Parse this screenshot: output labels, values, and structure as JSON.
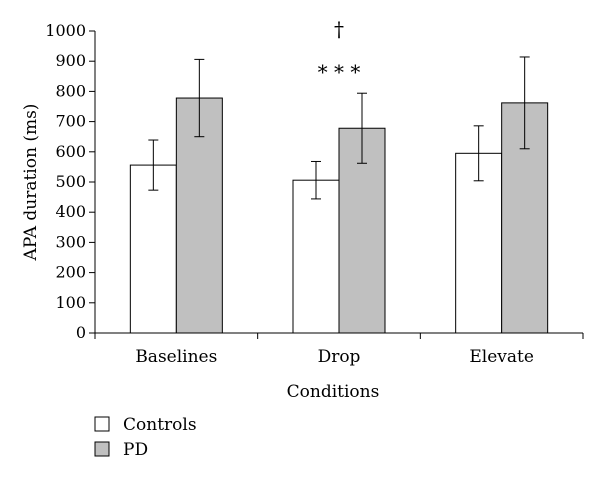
{
  "chart_data": {
    "type": "bar",
    "title": "",
    "xlabel": "Conditions",
    "ylabel": "APA duration (ms)",
    "ylim": [
      0,
      1000
    ],
    "yticks": [
      0,
      100,
      200,
      300,
      400,
      500,
      600,
      700,
      800,
      900,
      1000
    ],
    "grid": false,
    "categories": [
      "Baselines",
      "Drop",
      "Elevate"
    ],
    "series": [
      {
        "name": "Controls",
        "color": "#ffffff",
        "values": [
          556,
          506,
          595
        ],
        "error": [
          83,
          62,
          91
        ]
      },
      {
        "name": "PD",
        "color": "#c0c0c0",
        "values": [
          778,
          678,
          762
        ],
        "error": [
          128,
          116,
          152
        ]
      }
    ],
    "annotations": [
      {
        "category": "Drop",
        "text": "†"
      },
      {
        "category": "Drop",
        "text": "* * *"
      }
    ],
    "legend": {
      "position": "bottom-left"
    }
  }
}
